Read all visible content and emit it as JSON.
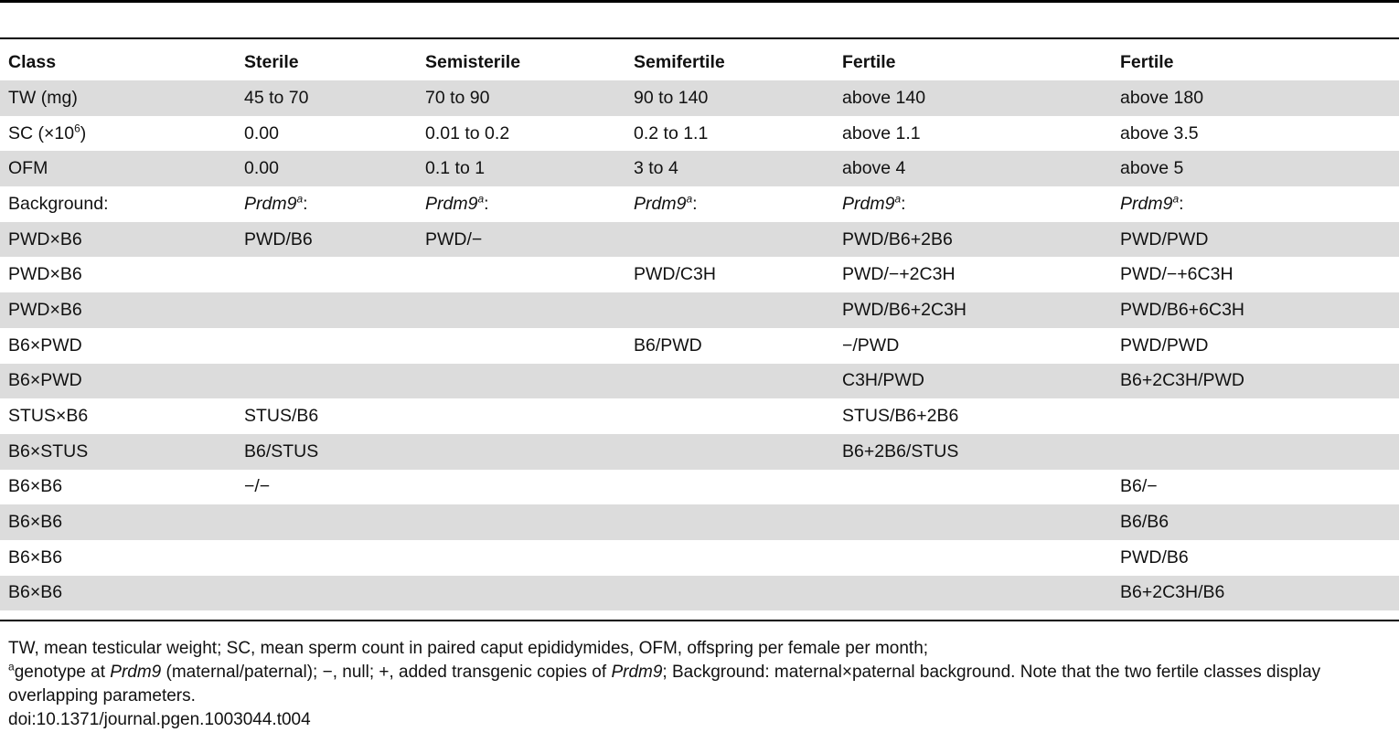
{
  "table": {
    "headers": [
      "Class",
      "Sterile",
      "Semisterile",
      "Semifertile",
      "Fertile",
      "Fertile"
    ],
    "rows": [
      [
        "TW (mg)",
        "45 to 70",
        "70 to 90",
        "90 to 140",
        "above 140",
        "above 180"
      ],
      [
        "SC (×10",
        "0.00",
        "0.01 to 0.2",
        "0.2 to 1.1",
        "above 1.1",
        "above 3.5"
      ],
      [
        "OFM",
        "0.00",
        "0.1 to 1",
        "3 to 4",
        "above 4",
        "above 5"
      ],
      [
        "Background:",
        "Prdm9",
        "Prdm9",
        "Prdm9",
        "Prdm9",
        "Prdm9"
      ],
      [
        "PWD×B6",
        "PWD/B6",
        "PWD/−",
        "",
        "PWD/B6+2B6",
        "PWD/PWD"
      ],
      [
        "PWD×B6",
        "",
        "",
        "PWD/C3H",
        "PWD/−+2C3H",
        "PWD/−+6C3H"
      ],
      [
        "PWD×B6",
        "",
        "",
        "",
        "PWD/B6+2C3H",
        "PWD/B6+6C3H"
      ],
      [
        "B6×PWD",
        "",
        "",
        "B6/PWD",
        "−/PWD",
        "PWD/PWD"
      ],
      [
        "B6×PWD",
        "",
        "",
        "",
        "C3H/PWD",
        "B6+2C3H/PWD"
      ],
      [
        "STUS×B6",
        "STUS/B6",
        "",
        "",
        "STUS/B6+2B6",
        ""
      ],
      [
        "B6×STUS",
        "B6/STUS",
        "",
        "",
        "B6+2B6/STUS",
        ""
      ],
      [
        "B6×B6",
        "−/−",
        "",
        "",
        "",
        "B6/−"
      ],
      [
        "B6×B6",
        "",
        "",
        "",
        "",
        "B6/B6"
      ],
      [
        "B6×B6",
        "",
        "",
        "",
        "",
        "PWD/B6"
      ],
      [
        "B6×B6",
        "",
        "",
        "",
        "",
        "B6+2C3H/B6"
      ]
    ],
    "sc_exponent": "6",
    "sc_close": ")",
    "background_superscript": "a",
    "background_colon": ":"
  },
  "footnotes": {
    "line1": "TW, mean testicular weight; SC, mean sperm count in paired caput epididymides, OFM, offspring per female per month;",
    "line2_sup": "a",
    "line2_part1": "genotype at ",
    "line2_gene1": "Prdm9",
    "line2_part2": " (maternal/paternal); −, null; +, added transgenic copies of ",
    "line2_gene2": "Prdm9",
    "line2_part3": "; Background: maternal×paternal background. Note that the two fertile classes display overlapping parameters.",
    "doi": "doi:10.1371/journal.pgen.1003044.t004"
  }
}
